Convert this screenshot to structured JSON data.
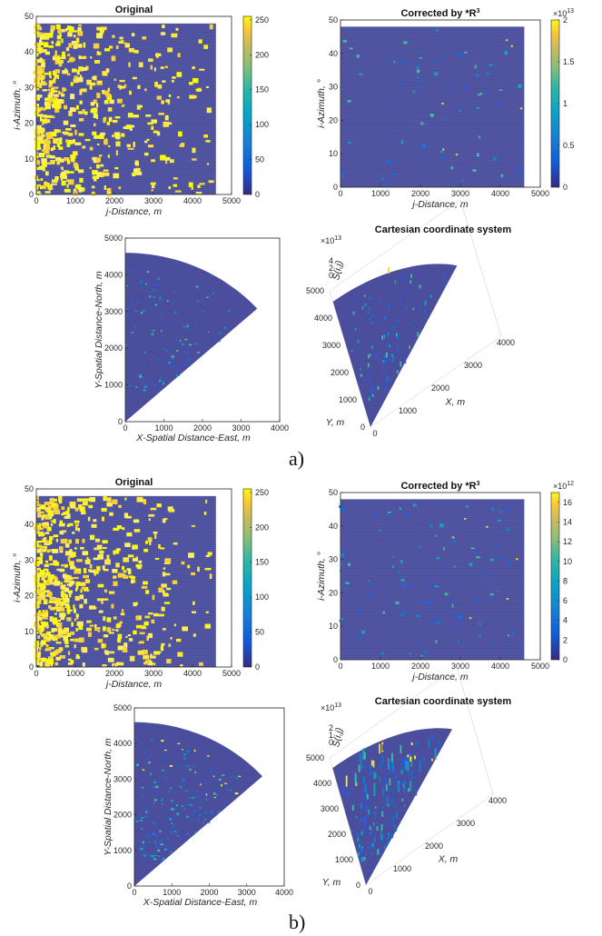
{
  "figure": {
    "panel_labels": [
      "a)",
      "b)"
    ],
    "colors": {
      "background": "#4a4e9c",
      "parula": [
        "#352a87",
        "#2a5be0",
        "#1082d1",
        "#16a5b8",
        "#4cbc8a",
        "#a6be54",
        "#e2b83f",
        "#f9dd2a",
        "#f9fb0e"
      ]
    }
  },
  "chart_data": [
    {
      "id": "a-original",
      "type": "heatmap",
      "title": "Original",
      "xlabel": "j-Distance, m",
      "ylabel": "i-Azimuth, °",
      "xlim": [
        0,
        5000
      ],
      "ylim": [
        0,
        50
      ],
      "xticks": [
        0,
        1000,
        2000,
        3000,
        4000,
        5000
      ],
      "yticks": [
        0,
        10,
        20,
        30,
        40,
        50
      ],
      "data_extent": {
        "x": [
          0,
          4600
        ],
        "y": [
          0,
          48
        ]
      },
      "colorbar": {
        "min": 0,
        "max": 255,
        "ticks": [
          0,
          50,
          100,
          150,
          200,
          250
        ],
        "exponent": ""
      },
      "density": {
        "near": 0.55,
        "far": 0.04,
        "falloff": 2600
      }
    },
    {
      "id": "a-corrected",
      "type": "heatmap",
      "title": "Corrected by *R",
      "title_sup": "3",
      "xlabel": "j-Distance, m",
      "ylabel": "i-Azimuth, °",
      "xlim": [
        0,
        5000
      ],
      "ylim": [
        0,
        50
      ],
      "xticks": [
        0,
        1000,
        2000,
        3000,
        4000,
        5000
      ],
      "yticks": [
        0,
        10,
        20,
        30,
        40,
        50
      ],
      "data_extent": {
        "x": [
          0,
          4600
        ],
        "y": [
          0,
          48
        ]
      },
      "colorbar": {
        "min": 0,
        "max": 2,
        "ticks": [
          0,
          0.5,
          1,
          1.5,
          2
        ],
        "exponent": "×10",
        "exponent_sup": "13"
      },
      "density": {
        "near": 0.02,
        "far": 0.06,
        "falloff": 2600
      }
    },
    {
      "id": "a-sector",
      "type": "heatmap",
      "title": "",
      "xlabel": "X-Spatial Distance-East, m",
      "ylabel": "Y-Spatial Distance-North, m",
      "xlim": [
        0,
        4000
      ],
      "ylim": [
        0,
        5000
      ],
      "xticks": [
        0,
        1000,
        2000,
        3000,
        4000
      ],
      "yticks": [
        0,
        1000,
        2000,
        3000,
        4000,
        5000
      ],
      "sector": {
        "radius": 4600,
        "angle_from_north_deg": [
          0,
          48
        ]
      }
    },
    {
      "id": "a-3d",
      "type": "heatmap",
      "title": "Cartesian coordinate system",
      "xlabel": "X, m",
      "ylabel": "Y, m",
      "zlabel": "S(i,j)",
      "xticks": [
        0,
        1000,
        2000,
        3000,
        4000
      ],
      "yticks": [
        0,
        1000,
        2000,
        3000,
        4000,
        5000
      ],
      "zticks": [
        0,
        2,
        4
      ],
      "zexponent": "×10",
      "zexponent_sup": "13"
    },
    {
      "id": "b-original",
      "type": "heatmap",
      "title": "Original",
      "xlabel": "j-Distance, m",
      "ylabel": "i-Azimuth, °",
      "xlim": [
        0,
        5000
      ],
      "ylim": [
        0,
        50
      ],
      "xticks": [
        0,
        1000,
        2000,
        3000,
        4000,
        5000
      ],
      "yticks": [
        0,
        10,
        20,
        30,
        40,
        50
      ],
      "data_extent": {
        "x": [
          0,
          4600
        ],
        "y": [
          0,
          48
        ]
      },
      "colorbar": {
        "min": 0,
        "max": 255,
        "ticks": [
          0,
          50,
          100,
          150,
          200,
          250
        ],
        "exponent": ""
      },
      "density": {
        "near": 0.6,
        "far": 0.05,
        "falloff": 2900
      }
    },
    {
      "id": "b-corrected",
      "type": "heatmap",
      "title": "Corrected by *R",
      "title_sup": "3",
      "xlabel": "j-Distance, m",
      "ylabel": "i-Azimuth, °",
      "xlim": [
        0,
        5000
      ],
      "ylim": [
        0,
        50
      ],
      "xticks": [
        0,
        1000,
        2000,
        3000,
        4000,
        5000
      ],
      "yticks": [
        0,
        10,
        20,
        30,
        40,
        50
      ],
      "data_extent": {
        "x": [
          0,
          4600
        ],
        "y": [
          0,
          48
        ]
      },
      "colorbar": {
        "min": 0,
        "max": 17,
        "ticks": [
          0,
          2,
          4,
          6,
          8,
          10,
          12,
          14,
          16
        ],
        "exponent": "×10",
        "exponent_sup": "12"
      },
      "density": {
        "near": 0.05,
        "far": 0.1,
        "falloff": 2900
      }
    },
    {
      "id": "b-sector",
      "type": "heatmap",
      "title": "",
      "xlabel": "X-Spatial Distance-East, m",
      "ylabel": "Y-Spatial Distance-North, m",
      "xlim": [
        0,
        4000
      ],
      "ylim": [
        0,
        5000
      ],
      "xticks": [
        0,
        1000,
        2000,
        3000,
        4000
      ],
      "yticks": [
        0,
        1000,
        2000,
        3000,
        4000,
        5000
      ],
      "sector": {
        "radius": 4600,
        "angle_from_north_deg": [
          0,
          48
        ]
      }
    },
    {
      "id": "b-3d",
      "type": "heatmap",
      "title": "Cartesian coordinate system",
      "xlabel": "X, m",
      "ylabel": "Y, m",
      "zlabel": "S(i,j)",
      "xticks": [
        0,
        1000,
        2000,
        3000,
        4000
      ],
      "yticks": [
        0,
        1000,
        2000,
        3000,
        4000,
        5000
      ],
      "zticks": [
        0,
        1,
        2
      ],
      "zexponent": "×10",
      "zexponent_sup": "13"
    }
  ]
}
